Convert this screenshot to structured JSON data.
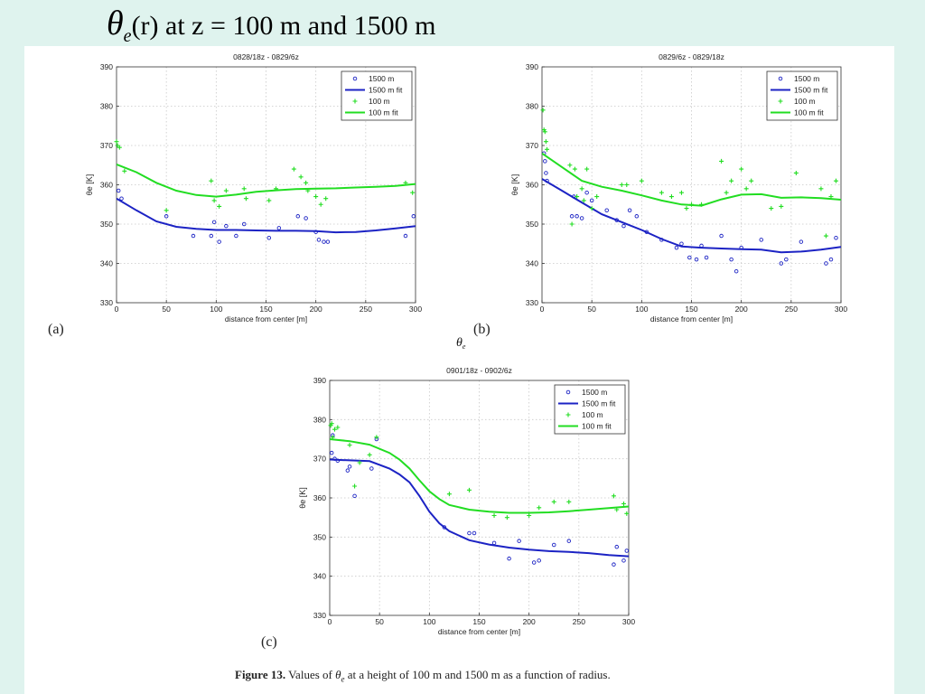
{
  "slide": {
    "title_rest": "(r) at z = 100 m and 1500 m",
    "panel_a_label": "(a)",
    "panel_b_label": "(b)",
    "panel_c_label": "(c)",
    "caption_bold": "Figure 13.",
    "caption_pre": "Values of",
    "caption_post": "at a height of 100 m and 1500 m as a function of radius."
  },
  "colors": {
    "background": "#dff3ee",
    "series_1500": "#1c23c4",
    "series_100": "#22dd22"
  },
  "chart_data": [
    {
      "type": "scatter",
      "title": "0828/18z - 0829/6z",
      "xlabel": "distance from center [m]",
      "ylabel": "θe [K]",
      "xlim": [
        0,
        300
      ],
      "ylim": [
        330,
        390
      ],
      "xticks": [
        0,
        50,
        100,
        150,
        200,
        250,
        300
      ],
      "yticks": [
        330,
        340,
        350,
        360,
        370,
        380,
        390
      ],
      "grid": true,
      "legend": "top-right",
      "series": [
        {
          "name": "1500 m",
          "kind": "points",
          "x": [
            2,
            5,
            50,
            77,
            95,
            98,
            103,
            110,
            120,
            128,
            153,
            163,
            182,
            190,
            200,
            203,
            208,
            212,
            290,
            298
          ],
          "y": [
            358.5,
            356.5,
            352,
            347,
            347,
            350.5,
            345.5,
            349.5,
            347,
            350,
            346.5,
            349,
            352,
            351.5,
            348,
            346,
            345.5,
            345.5,
            347,
            352
          ]
        },
        {
          "name": "1500 m fit",
          "kind": "line",
          "x": [
            0,
            20,
            40,
            60,
            80,
            100,
            120,
            140,
            160,
            180,
            200,
            220,
            240,
            260,
            280,
            300
          ],
          "y": [
            356.5,
            353.5,
            350.7,
            349.3,
            348.8,
            348.5,
            348.5,
            348.4,
            348.3,
            348.3,
            348.2,
            347.9,
            348,
            348.4,
            348.9,
            349.5
          ]
        },
        {
          "name": "100 m",
          "kind": "points",
          "x": [
            0,
            1,
            3,
            8,
            50,
            95,
            98,
            103,
            110,
            128,
            130,
            153,
            160,
            178,
            185,
            190,
            192,
            200,
            205,
            210,
            290,
            297
          ],
          "y": [
            371,
            370,
            369.5,
            363.5,
            353.5,
            361,
            356,
            354.5,
            358.5,
            359,
            356.5,
            356,
            359,
            364,
            362,
            360.5,
            358.5,
            357,
            355,
            356.5,
            360.5,
            358
          ]
        },
        {
          "name": "100 m fit",
          "kind": "line",
          "x": [
            0,
            20,
            40,
            60,
            80,
            100,
            120,
            140,
            160,
            180,
            200,
            220,
            240,
            260,
            280,
            300
          ],
          "y": [
            365.2,
            363.2,
            360.5,
            358.5,
            357.4,
            357,
            357.5,
            358.2,
            358.6,
            358.9,
            359,
            359.1,
            359.3,
            359.5,
            359.7,
            360.2
          ]
        }
      ]
    },
    {
      "type": "scatter",
      "title": "0829/6z - 0829/18z",
      "xlabel": "distance from center [m]",
      "ylabel": "θe [K]",
      "xlim": [
        0,
        300
      ],
      "ylim": [
        330,
        390
      ],
      "xticks": [
        0,
        50,
        100,
        150,
        200,
        250,
        300
      ],
      "yticks": [
        330,
        340,
        350,
        360,
        370,
        380,
        390
      ],
      "grid": true,
      "legend": "top-right",
      "series": [
        {
          "name": "1500 m",
          "kind": "points",
          "x": [
            2,
            3,
            4,
            5,
            30,
            32,
            35,
            40,
            45,
            50,
            65,
            75,
            82,
            88,
            95,
            105,
            120,
            135,
            140,
            148,
            155,
            160,
            165,
            180,
            190,
            195,
            200,
            220,
            240,
            245,
            260,
            285,
            290,
            295
          ],
          "y": [
            368,
            366,
            363,
            361,
            352,
            357,
            352,
            351.5,
            358,
            356,
            353.5,
            351,
            349.5,
            353.5,
            352,
            348,
            346,
            344,
            345,
            341.5,
            341,
            344.5,
            341.5,
            347,
            341,
            338,
            344,
            346,
            340,
            341,
            345.5,
            340,
            341,
            346.5
          ]
        },
        {
          "name": "1500 m fit",
          "kind": "line",
          "x": [
            0,
            20,
            40,
            60,
            80,
            100,
            120,
            140,
            160,
            180,
            200,
            220,
            240,
            260,
            280,
            300
          ],
          "y": [
            361.5,
            358.5,
            355.5,
            352.5,
            350.5,
            348.5,
            346.2,
            344.3,
            344,
            343.8,
            343.6,
            343.5,
            342.8,
            343,
            343.5,
            344.2
          ]
        },
        {
          "name": "100 m",
          "kind": "points",
          "x": [
            1,
            2,
            3,
            4,
            5,
            28,
            30,
            33,
            35,
            40,
            42,
            45,
            50,
            55,
            80,
            85,
            100,
            120,
            130,
            140,
            145,
            150,
            160,
            180,
            185,
            190,
            200,
            205,
            210,
            230,
            240,
            255,
            280,
            285,
            290,
            295
          ],
          "y": [
            379,
            374,
            373.5,
            371,
            369,
            365,
            350,
            364,
            357,
            359,
            356,
            364,
            354,
            357,
            360,
            360,
            361,
            358,
            357,
            358,
            354,
            355,
            355,
            366,
            358,
            361,
            364,
            359,
            361,
            354,
            354.5,
            363,
            359,
            347,
            357,
            361
          ]
        },
        {
          "name": "100 m fit",
          "kind": "line",
          "x": [
            0,
            20,
            40,
            60,
            80,
            100,
            120,
            140,
            160,
            180,
            200,
            220,
            240,
            260,
            280,
            300
          ],
          "y": [
            368,
            364.5,
            361,
            359.5,
            358.5,
            357.3,
            356,
            355,
            354.7,
            356.3,
            357.5,
            357.6,
            356.7,
            356.8,
            356.6,
            356.2
          ]
        }
      ]
    },
    {
      "type": "scatter",
      "title": "0901/18z - 0902/6z",
      "xlabel": "distance from center [m]",
      "ylabel": "θe [K]",
      "xlim": [
        0,
        300
      ],
      "ylim": [
        330,
        390
      ],
      "xticks": [
        0,
        50,
        100,
        150,
        200,
        250,
        300
      ],
      "yticks": [
        330,
        340,
        350,
        360,
        370,
        380,
        390
      ],
      "grid": true,
      "legend": "top-right",
      "series": [
        {
          "name": "1500 m",
          "kind": "points",
          "x": [
            2,
            3,
            5,
            8,
            18,
            20,
            25,
            42,
            47,
            115,
            140,
            145,
            165,
            180,
            190,
            205,
            210,
            225,
            240,
            285,
            288,
            295,
            298
          ],
          "y": [
            371.5,
            376,
            370,
            369.5,
            367,
            368,
            360.5,
            367.5,
            375,
            352.5,
            351,
            351,
            348.5,
            344.5,
            349,
            343.5,
            344,
            348,
            349,
            343,
            347.5,
            344,
            346.5
          ]
        },
        {
          "name": "1500 m fit",
          "kind": "line",
          "x": [
            0,
            20,
            40,
            60,
            70,
            80,
            90,
            100,
            110,
            120,
            140,
            160,
            180,
            200,
            220,
            240,
            260,
            280,
            300
          ],
          "y": [
            369.8,
            369.6,
            369.4,
            367.5,
            366,
            364,
            360.5,
            356.5,
            353.5,
            351.5,
            349.2,
            348.1,
            347.3,
            346.8,
            346.4,
            346.2,
            345.9,
            345.4,
            345.1
          ]
        },
        {
          "name": "100 m",
          "kind": "points",
          "x": [
            1,
            2,
            3,
            5,
            8,
            20,
            25,
            30,
            40,
            47,
            120,
            140,
            165,
            178,
            200,
            210,
            225,
            240,
            285,
            288,
            295,
            298
          ],
          "y": [
            378.5,
            379,
            375.5,
            377.5,
            378,
            373.5,
            363,
            369,
            371,
            375.5,
            361,
            362,
            355.5,
            355,
            355.5,
            357.5,
            359,
            359,
            360.5,
            357,
            358.5,
            356
          ]
        },
        {
          "name": "100 m fit",
          "kind": "line",
          "x": [
            0,
            20,
            40,
            60,
            70,
            80,
            90,
            100,
            110,
            120,
            140,
            160,
            180,
            200,
            220,
            240,
            260,
            280,
            300
          ],
          "y": [
            375,
            374.5,
            373.6,
            371.5,
            369.8,
            367.5,
            364.5,
            361.7,
            359.7,
            358.2,
            357,
            356.5,
            356.2,
            356.2,
            356.3,
            356.6,
            357,
            357.4,
            357.8
          ]
        }
      ]
    }
  ]
}
